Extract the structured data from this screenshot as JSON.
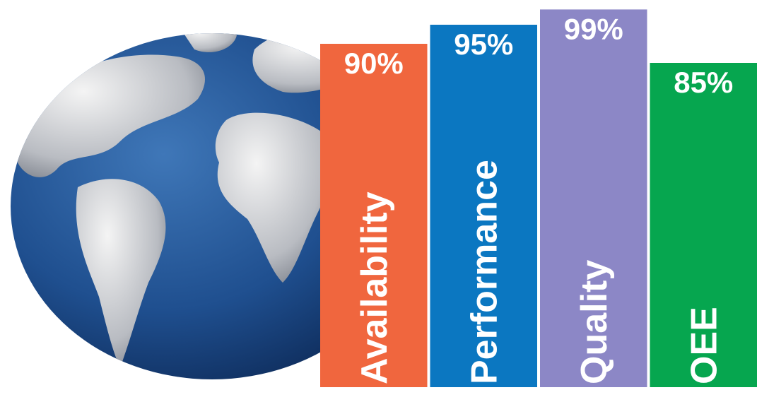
{
  "chart_data": {
    "type": "bar",
    "categories": [
      "Availability",
      "Performance",
      "Quality",
      "OEE"
    ],
    "values": [
      90,
      95,
      99,
      85
    ],
    "value_labels": [
      "90%",
      "95%",
      "99%",
      "85%"
    ],
    "colors": [
      "#f0663e",
      "#0b77c1",
      "#8c87c6",
      "#06a64f"
    ],
    "ylim": [
      0,
      100
    ]
  }
}
